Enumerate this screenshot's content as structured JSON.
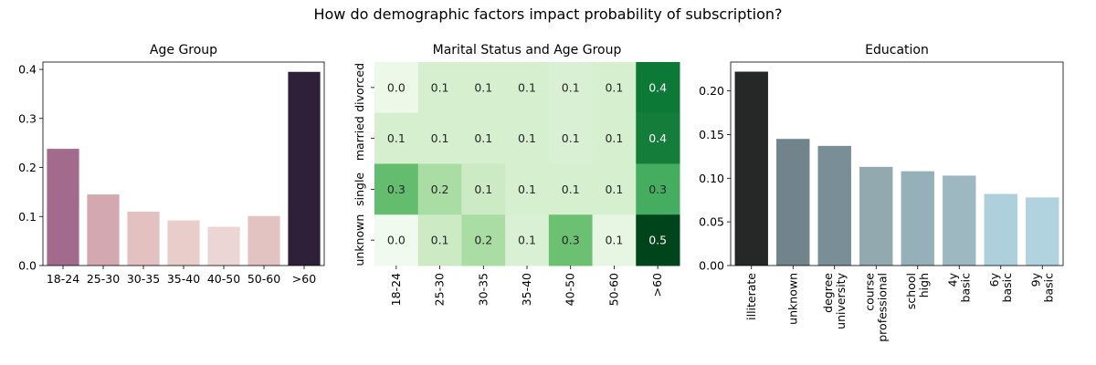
{
  "figure": {
    "title": "How do demographic factors impact probability of subscription?"
  },
  "chart_data": [
    {
      "type": "bar",
      "title": "Age Group",
      "xlabel": "",
      "ylabel": "",
      "categories": [
        "18-24",
        "25-30",
        "30-35",
        "35-40",
        "40-50",
        "50-60",
        ">60"
      ],
      "values": [
        0.238,
        0.145,
        0.11,
        0.092,
        0.079,
        0.101,
        0.395
      ],
      "colors": [
        "#a26b8c",
        "#d3a8b1",
        "#e3c1c0",
        "#e8cdcb",
        "#ebd6d5",
        "#e2c3c2",
        "#2e2039"
      ],
      "ylim": [
        0,
        0.415
      ],
      "yticks": [
        "0.0",
        "0.1",
        "0.2",
        "0.3",
        "0.4"
      ],
      "ytick_values": [
        0,
        0.1,
        0.2,
        0.3,
        0.4
      ]
    },
    {
      "type": "heatmap",
      "title": "Marital Status and Age Group",
      "xlabel": "",
      "ylabel": "",
      "x_categories": [
        "18-24",
        "25-30",
        "30-35",
        "35-40",
        "40-50",
        "50-60",
        ">60"
      ],
      "y_categories": [
        "divorced",
        "married",
        "single",
        "unknown"
      ],
      "values": [
        [
          0.04,
          0.1,
          0.1,
          0.1,
          0.09,
          0.1,
          0.43
        ],
        [
          0.1,
          0.1,
          0.1,
          0.1,
          0.09,
          0.1,
          0.42
        ],
        [
          0.28,
          0.18,
          0.12,
          0.1,
          0.1,
          0.1,
          0.32
        ],
        [
          0.02,
          0.12,
          0.18,
          0.09,
          0.27,
          0.06,
          0.52
        ]
      ],
      "labels": [
        [
          "0.0",
          "0.1",
          "0.1",
          "0.1",
          "0.1",
          "0.1",
          "0.4"
        ],
        [
          "0.1",
          "0.1",
          "0.1",
          "0.1",
          "0.1",
          "0.1",
          "0.4"
        ],
        [
          "0.3",
          "0.2",
          "0.1",
          "0.1",
          "0.1",
          "0.1",
          "0.3"
        ],
        [
          "0.0",
          "0.1",
          "0.2",
          "0.1",
          "0.3",
          "0.1",
          "0.5"
        ]
      ],
      "colormap": "Greens",
      "vmin": 0,
      "vmax": 0.52
    },
    {
      "type": "bar",
      "title": "Education",
      "xlabel": "",
      "ylabel": "",
      "categories": [
        "illiterate",
        "unknown",
        "university degree",
        "professional course",
        "high school",
        "basic 4y",
        "basic 6y",
        "basic 9y"
      ],
      "tick_label_lines": [
        [
          "illiterate"
        ],
        [
          "unknown"
        ],
        [
          "university",
          "degree"
        ],
        [
          "professional",
          "course"
        ],
        [
          "high",
          "school"
        ],
        [
          "basic",
          "4y"
        ],
        [
          "basic",
          "6y"
        ],
        [
          "basic",
          "9y"
        ]
      ],
      "values": [
        0.222,
        0.145,
        0.137,
        0.113,
        0.108,
        0.103,
        0.082,
        0.078
      ],
      "colors": [
        "#252827",
        "#71848b",
        "#798e96",
        "#92a9b0",
        "#96b0b9",
        "#9eb8c1",
        "#aed0dd",
        "#b0d3df"
      ],
      "ylim": [
        0,
        0.233
      ],
      "yticks": [
        "0.00",
        "0.05",
        "0.10",
        "0.15",
        "0.20"
      ],
      "ytick_values": [
        0,
        0.05,
        0.1,
        0.15,
        0.2
      ]
    }
  ]
}
